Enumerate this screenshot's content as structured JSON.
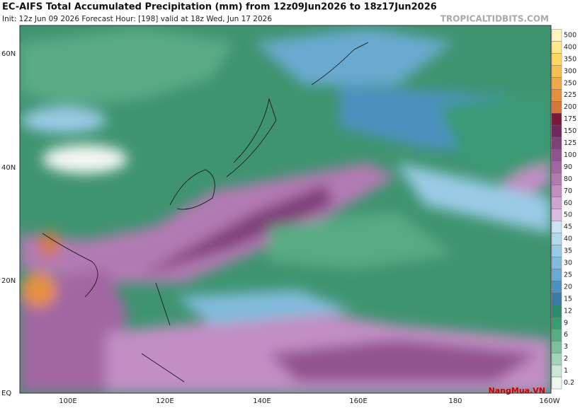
{
  "header": {
    "title": "EC-AIFS Total Accumulated Precipitation (mm) from 12z09Jun2026 to 18z17Jun2026",
    "subtitle": "Init: 12z Jun 09 2026   Forecast Hour: [198]   valid at 18z Wed, Jun 17 2026",
    "site": "TROPICALTIDBITS.COM"
  },
  "map": {
    "lat_labels": [
      "60N",
      "40N",
      "20N",
      "EQ"
    ],
    "lon_labels": [
      "100E",
      "120E",
      "140E",
      "160E",
      "180",
      "160W"
    ]
  },
  "colorbar": {
    "levels": [
      500,
      400,
      350,
      300,
      250,
      225,
      200,
      175,
      150,
      125,
      100,
      90,
      80,
      70,
      60,
      50,
      45,
      40,
      35,
      30,
      25,
      20,
      15,
      12,
      9,
      6,
      3,
      2,
      1,
      0.2
    ],
    "colors": [
      "#fff4c0",
      "#ffe98a",
      "#ffd860",
      "#f8c050",
      "#f0a848",
      "#e69040",
      "#d87838",
      "#7a1838",
      "#6e2a5e",
      "#80407a",
      "#925290",
      "#a266a2",
      "#b27ab2",
      "#c28ec4",
      "#d0a4d2",
      "#dcbbe0",
      "#c8e4f4",
      "#b2d8ee",
      "#9acbe6",
      "#82bcdc",
      "#6aaad0",
      "#4c92c0",
      "#3a7aa4",
      "#2e8a6c",
      "#3a9a74",
      "#58ac84",
      "#7cc09c",
      "#a4d4b8",
      "#cce6d8",
      "#eef6f0"
    ]
  },
  "watermark": "NangMua.VN"
}
